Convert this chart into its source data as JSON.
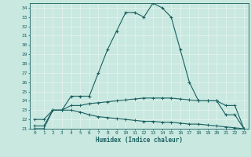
{
  "xlabel": "Humidex (Indice chaleur)",
  "xlim": [
    -0.5,
    23.5
  ],
  "ylim": [
    21,
    34.5
  ],
  "yticks": [
    21,
    22,
    23,
    24,
    25,
    26,
    27,
    28,
    29,
    30,
    31,
    32,
    33,
    34
  ],
  "xticks": [
    0,
    1,
    2,
    3,
    4,
    5,
    6,
    7,
    8,
    9,
    10,
    11,
    12,
    13,
    14,
    15,
    16,
    17,
    18,
    19,
    20,
    21,
    22,
    23
  ],
  "xtick_labels": [
    "0",
    "1",
    "2",
    "3",
    "4",
    "5",
    "6",
    "7",
    "8",
    "9",
    "10",
    "11",
    "12",
    "13",
    "14",
    "15",
    "16",
    "17",
    "18",
    "19",
    "20",
    "21",
    "22",
    "23"
  ],
  "bg_color": "#c8e8e0",
  "grid_color": "#e8f4f0",
  "line_color": "#1a6060",
  "series1_x": [
    0,
    1,
    2,
    3,
    4,
    5,
    6,
    7,
    8,
    9,
    10,
    11,
    12,
    13,
    14,
    15,
    16,
    17,
    18,
    19,
    20,
    21,
    22,
    23
  ],
  "series1_y": [
    21.0,
    21.0,
    23.0,
    23.0,
    24.5,
    24.5,
    24.5,
    27.0,
    29.5,
    31.5,
    33.5,
    33.5,
    33.0,
    34.5,
    34.0,
    33.0,
    29.5,
    26.0,
    24.0,
    24.0,
    24.0,
    22.5,
    22.5,
    21.0
  ],
  "series2_x": [
    0,
    1,
    2,
    3,
    4,
    5,
    6,
    7,
    8,
    9,
    10,
    11,
    12,
    13,
    14,
    15,
    16,
    17,
    18,
    19,
    20,
    21,
    22,
    23
  ],
  "series2_y": [
    21.3,
    21.3,
    23.0,
    23.0,
    23.5,
    23.5,
    23.7,
    23.8,
    23.9,
    24.0,
    24.1,
    24.2,
    24.3,
    24.3,
    24.3,
    24.3,
    24.2,
    24.1,
    24.0,
    24.0,
    24.0,
    23.5,
    23.5,
    21.0
  ],
  "series3_x": [
    0,
    1,
    2,
    3,
    4,
    5,
    6,
    7,
    8,
    9,
    10,
    11,
    12,
    13,
    14,
    15,
    16,
    17,
    18,
    19,
    20,
    21,
    22,
    23
  ],
  "series3_y": [
    22.0,
    22.0,
    23.0,
    23.0,
    23.0,
    22.8,
    22.5,
    22.3,
    22.2,
    22.1,
    22.0,
    21.9,
    21.8,
    21.8,
    21.7,
    21.7,
    21.6,
    21.5,
    21.5,
    21.4,
    21.3,
    21.2,
    21.1,
    21.0
  ]
}
